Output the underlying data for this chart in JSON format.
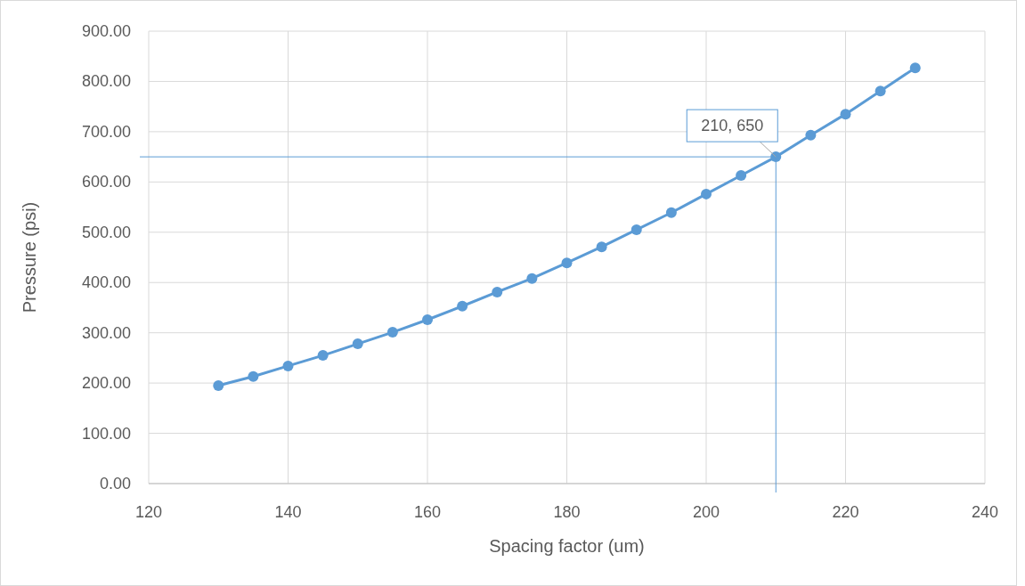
{
  "chart_data": {
    "type": "line",
    "xlabel": "Spacing factor (um)",
    "ylabel": "Pressure (psi)",
    "x": [
      130,
      135,
      140,
      145,
      150,
      155,
      160,
      165,
      170,
      175,
      180,
      185,
      190,
      195,
      200,
      205,
      210,
      215,
      220,
      225,
      230
    ],
    "series": [
      {
        "color": "#5b9bd5",
        "values": [
          195,
          213,
          234,
          255,
          278,
          301,
          326,
          353,
          381,
          408,
          439,
          471,
          505,
          539,
          576,
          613,
          650,
          693,
          735,
          781,
          827
        ]
      }
    ],
    "xlim": [
      120,
      240
    ],
    "xticks": [
      120,
      140,
      160,
      180,
      200,
      220,
      240
    ],
    "ylim": [
      0,
      900
    ],
    "yticks": [
      {
        "value": 0,
        "label": "0.00"
      },
      {
        "value": 100,
        "label": "100.00"
      },
      {
        "value": 200,
        "label": "200.00"
      },
      {
        "value": 300,
        "label": "300.00"
      },
      {
        "value": 400,
        "label": "400.00"
      },
      {
        "value": 500,
        "label": "500.00"
      },
      {
        "value": 600,
        "label": "600.00"
      },
      {
        "value": 700,
        "label": "700.00"
      },
      {
        "value": 800,
        "label": "800.00"
      },
      {
        "value": 900,
        "label": "900.00"
      }
    ],
    "grid": true,
    "marker": "circle",
    "line_style": "solid",
    "ref_lines": [
      {
        "axis": "y",
        "value": 650,
        "color": "#5b9bd5"
      },
      {
        "axis": "x",
        "value": 210,
        "color": "#5b9bd5"
      }
    ],
    "annotations": [
      {
        "text": "210, 650",
        "x": 210,
        "y": 650
      }
    ]
  }
}
